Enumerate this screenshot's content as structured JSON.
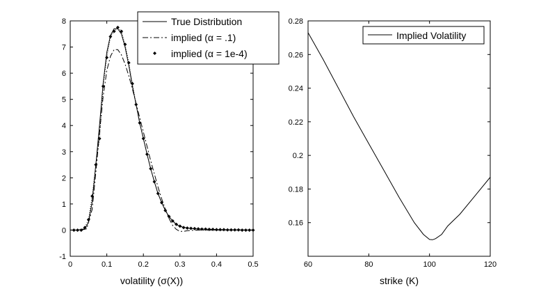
{
  "chart_data": [
    {
      "type": "line",
      "xlabel": "volatility (σ(X))",
      "ylabel": "",
      "xlim": [
        0,
        0.5
      ],
      "ylim": [
        -1,
        8
      ],
      "xticks": [
        0,
        0.1,
        0.2,
        0.3,
        0.4,
        0.5
      ],
      "xtick_labels": [
        "0",
        "0.1",
        "0.2",
        "0.3",
        "0.4",
        "0.5"
      ],
      "yticks": [
        -1,
        0,
        1,
        2,
        3,
        4,
        5,
        6,
        7,
        8
      ],
      "ytick_labels": [
        "-1",
        "0",
        "1",
        "2",
        "3",
        "4",
        "5",
        "6",
        "7",
        "8"
      ],
      "legend_position": "top-right",
      "series": [
        {
          "name": "True Distribution",
          "style": "solid",
          "x": [
            0,
            0.02,
            0.04,
            0.05,
            0.06,
            0.07,
            0.08,
            0.09,
            0.1,
            0.11,
            0.12,
            0.13,
            0.14,
            0.15,
            0.16,
            0.17,
            0.18,
            0.19,
            0.2,
            0.21,
            0.22,
            0.23,
            0.24,
            0.25,
            0.26,
            0.27,
            0.28,
            0.29,
            0.3,
            0.32,
            0.34,
            0.36,
            0.38,
            0.4,
            0.45,
            0.5
          ],
          "y": [
            0,
            0,
            0.05,
            0.3,
            1.1,
            2.5,
            4.0,
            5.6,
            6.8,
            7.45,
            7.7,
            7.7,
            7.5,
            7.0,
            6.3,
            5.5,
            4.8,
            4.1,
            3.5,
            2.9,
            2.35,
            1.85,
            1.4,
            1.05,
            0.75,
            0.52,
            0.35,
            0.22,
            0.14,
            0.08,
            0.05,
            0.04,
            0.03,
            0.02,
            0.01,
            0
          ]
        },
        {
          "name": "implied (α = .1)",
          "style": "dashdot",
          "x": [
            0,
            0.03,
            0.045,
            0.06,
            0.07,
            0.08,
            0.09,
            0.1,
            0.11,
            0.12,
            0.13,
            0.14,
            0.15,
            0.16,
            0.17,
            0.18,
            0.19,
            0.2,
            0.21,
            0.22,
            0.23,
            0.24,
            0.25,
            0.26,
            0.27,
            0.28,
            0.29,
            0.3,
            0.31,
            0.32,
            0.35,
            0.4,
            0.5
          ],
          "y": [
            0,
            0,
            0.05,
            0.8,
            2.2,
            3.7,
            5.1,
            6.1,
            6.65,
            6.9,
            6.9,
            6.7,
            6.35,
            5.9,
            5.4,
            4.85,
            4.3,
            3.75,
            3.2,
            2.65,
            2.15,
            1.65,
            1.2,
            0.8,
            0.45,
            0.18,
            0.03,
            -0.05,
            -0.05,
            -0.02,
            0,
            0,
            0
          ]
        },
        {
          "name": "implied (α = 1e-4)",
          "style": "dotted-marker",
          "x": [
            0.01,
            0.02,
            0.03,
            0.04,
            0.05,
            0.06,
            0.07,
            0.08,
            0.09,
            0.1,
            0.11,
            0.12,
            0.13,
            0.14,
            0.15,
            0.16,
            0.17,
            0.18,
            0.19,
            0.2,
            0.21,
            0.22,
            0.23,
            0.24,
            0.25,
            0.26,
            0.27,
            0.28,
            0.29,
            0.3,
            0.31,
            0.32,
            0.33,
            0.34,
            0.35,
            0.36,
            0.37,
            0.38,
            0.39,
            0.4,
            0.41,
            0.42,
            0.43,
            0.44,
            0.45,
            0.46,
            0.47,
            0.48,
            0.49,
            0.5
          ],
          "y": [
            0,
            0,
            0,
            0.1,
            0.4,
            1.3,
            2.5,
            3.5,
            5.5,
            6.6,
            7.4,
            7.6,
            7.75,
            7.6,
            7.1,
            6.4,
            5.6,
            4.8,
            4.1,
            3.5,
            2.9,
            2.35,
            1.85,
            1.4,
            1.05,
            0.75,
            0.52,
            0.35,
            0.22,
            0.15,
            0.1,
            0.08,
            0.07,
            0.06,
            0.05,
            0.04,
            0.04,
            0.03,
            0.03,
            0.02,
            0.02,
            0.02,
            0.01,
            0.01,
            0.01,
            0.01,
            0,
            0,
            0,
            0
          ]
        }
      ]
    },
    {
      "type": "line",
      "xlabel": "strike (K)",
      "ylabel": "",
      "xlim": [
        60,
        120
      ],
      "ylim": [
        0.14,
        0.28
      ],
      "xticks": [
        60,
        80,
        100,
        120
      ],
      "xtick_labels": [
        "60",
        "80",
        "100",
        "120"
      ],
      "yticks": [
        0.16,
        0.18,
        0.2,
        0.22,
        0.24,
        0.26,
        0.28
      ],
      "ytick_labels": [
        "0.16",
        "0.18",
        "0.2",
        "0.22",
        "0.24",
        "0.26",
        "0.28"
      ],
      "legend_position": "top-right",
      "series": [
        {
          "name": "Implied Volatility",
          "style": "solid",
          "x": [
            60,
            65,
            70,
            75,
            80,
            85,
            90,
            95,
            98,
            100,
            101,
            102,
            104,
            106,
            110,
            115,
            120
          ],
          "y": [
            0.273,
            0.257,
            0.24,
            0.223,
            0.207,
            0.191,
            0.175,
            0.16,
            0.153,
            0.15,
            0.1498,
            0.1505,
            0.153,
            0.158,
            0.165,
            0.176,
            0.187
          ]
        }
      ]
    }
  ]
}
